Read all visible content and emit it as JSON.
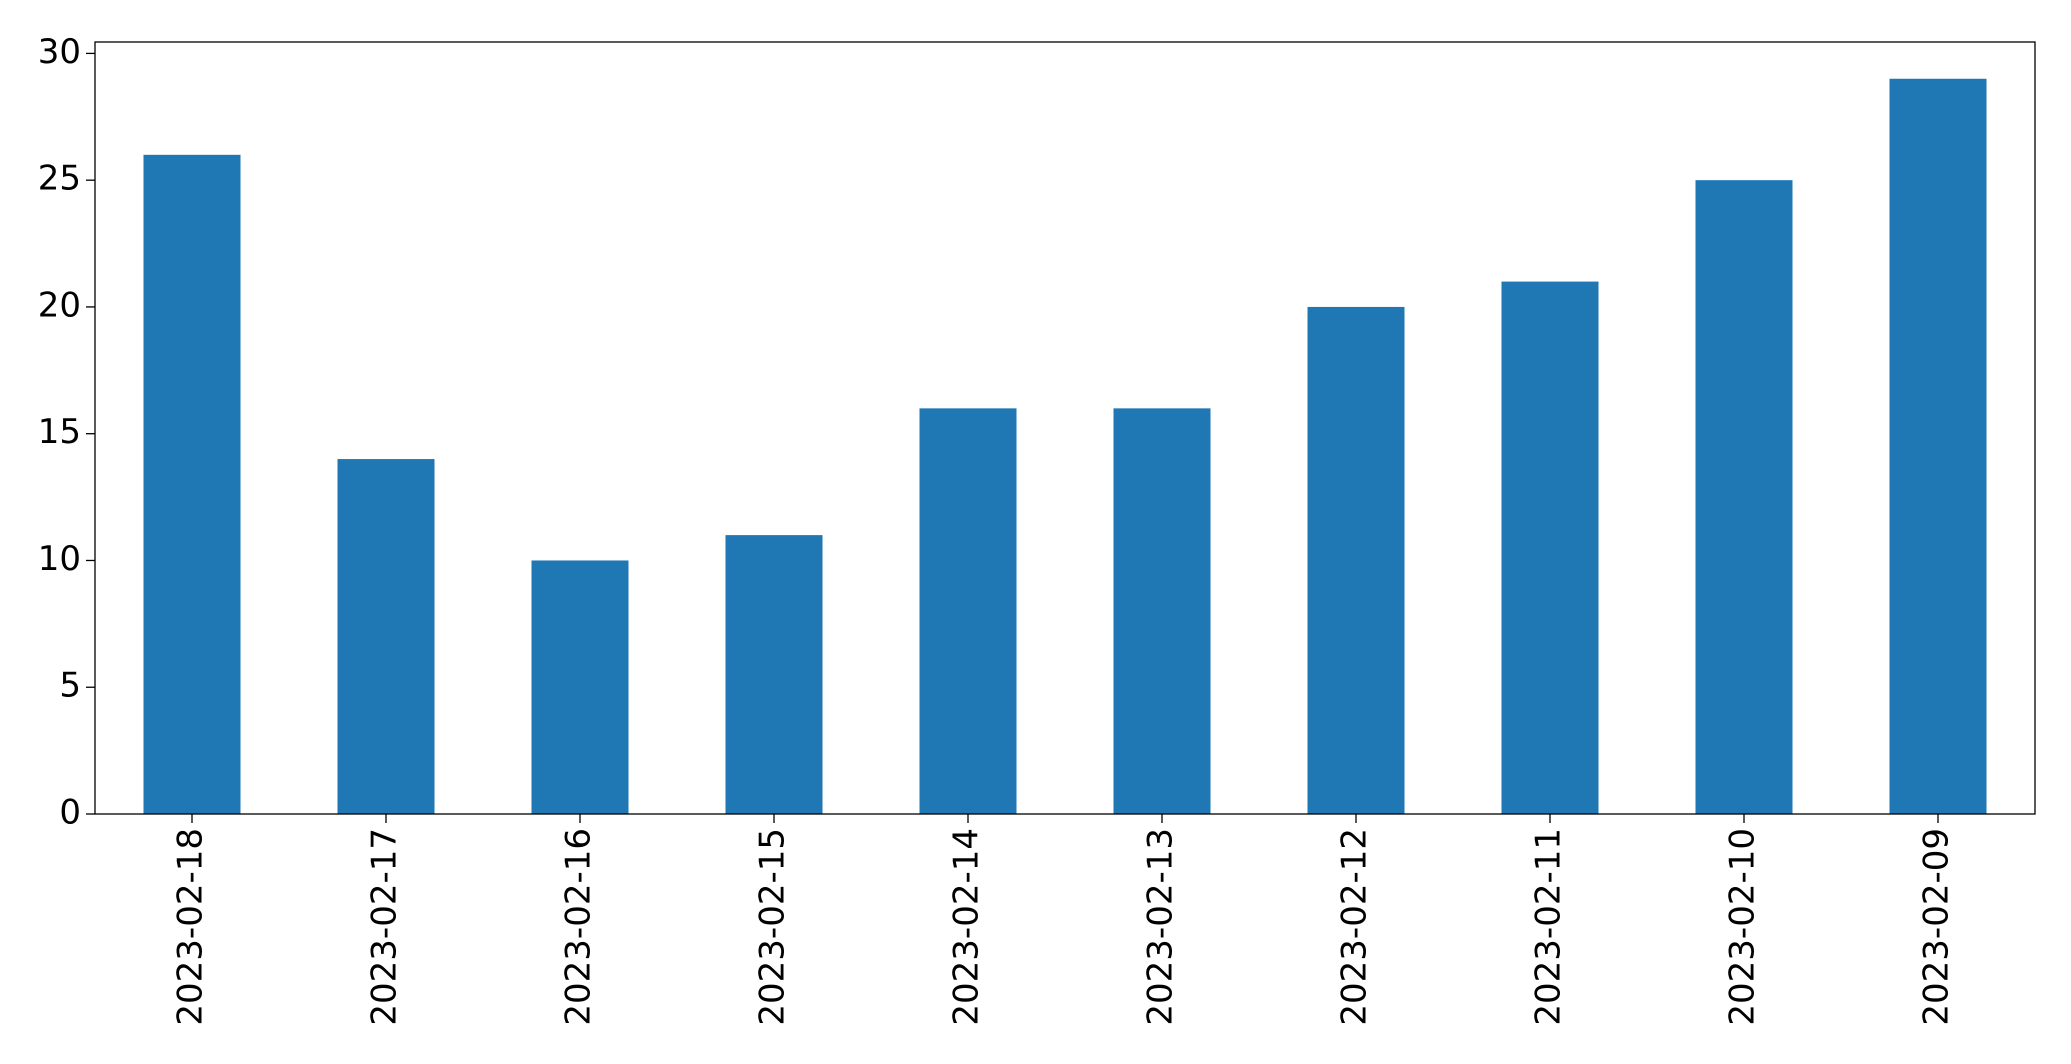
{
  "chart_data": {
    "type": "bar",
    "categories": [
      "2023-02-18",
      "2023-02-17",
      "2023-02-16",
      "2023-02-15",
      "2023-02-14",
      "2023-02-13",
      "2023-02-12",
      "2023-02-11",
      "2023-02-10",
      "2023-02-09"
    ],
    "values": [
      26,
      14,
      10,
      11,
      16,
      16,
      20,
      21,
      25,
      29
    ],
    "color": "#1f77b4",
    "ylim": [
      0,
      30.45
    ],
    "yticks": [
      0,
      5,
      10,
      15,
      20,
      25,
      30
    ],
    "grid": false
  }
}
